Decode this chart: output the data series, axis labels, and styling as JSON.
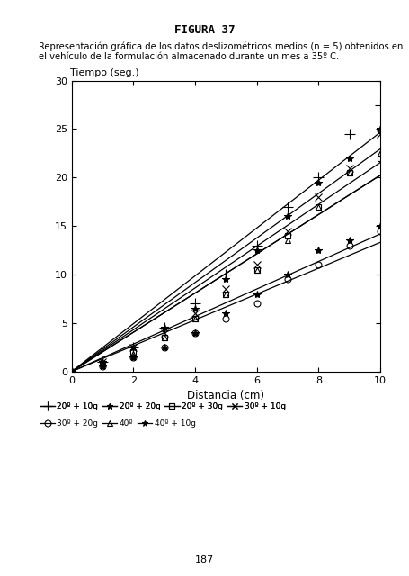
{
  "title": "FIGURA 37",
  "subtitle_line1": "Representación gráfica de los datos deslizométricos medios (n = 5) obtenidos en",
  "subtitle_line2": "el vehículo de la formulación almacenado durante un mes a 35º C.",
  "xlabel": "Distancia (cm)",
  "ylabel": "Tiempo (seg.)",
  "xlim": [
    0,
    10
  ],
  "ylim": [
    0,
    30
  ],
  "xticks": [
    0,
    2,
    4,
    6,
    8,
    10
  ],
  "yticks": [
    0,
    5,
    10,
    15,
    20,
    25,
    30
  ],
  "page_number": "187",
  "data_points": {
    "20º + 10g": [
      0.0,
      1.0,
      2.5,
      4.5,
      7.0,
      10.0,
      13.0,
      17.0,
      20.0,
      24.5,
      27.5
    ],
    "20º + 20g": [
      0.0,
      1.0,
      2.5,
      4.5,
      6.5,
      9.5,
      12.5,
      16.0,
      19.5,
      22.0,
      25.0
    ],
    "20º + 30g": [
      0.0,
      0.8,
      2.0,
      3.5,
      5.5,
      8.0,
      10.5,
      14.0,
      17.0,
      20.5,
      22.0
    ],
    "30º + 10g": [
      0.0,
      1.0,
      2.5,
      4.0,
      6.0,
      8.5,
      11.0,
      14.5,
      18.0,
      21.0,
      24.5
    ],
    "30º + 20g": [
      0.0,
      0.5,
      1.5,
      2.5,
      4.0,
      5.5,
      7.0,
      9.5,
      11.0,
      13.0,
      14.5
    ],
    "40º": [
      0.0,
      0.8,
      1.8,
      3.5,
      5.5,
      8.0,
      10.5,
      13.5,
      17.0,
      20.5,
      22.5
    ],
    "40º + 10g": [
      0.0,
      0.5,
      1.5,
      2.5,
      4.0,
      6.0,
      8.0,
      10.0,
      12.5,
      13.5,
      15.0
    ]
  },
  "x_points": [
    0,
    1,
    2,
    3,
    4,
    5,
    6,
    7,
    8,
    9,
    10
  ],
  "markers": [
    "+",
    "*",
    "s",
    "x",
    "o",
    "^",
    "*"
  ],
  "marker_face": [
    "none",
    "black",
    "none",
    "none",
    "none",
    "none",
    "black"
  ],
  "marker_sizes": [
    8,
    6,
    4,
    6,
    5,
    5,
    6
  ],
  "legend_row1_labels": [
    "20º + 10g",
    "20º + 20g",
    "20º + 30g",
    "30º + 10g"
  ],
  "legend_row2_labels": [
    "30º + 20g",
    "40º",
    "40º + 10g"
  ]
}
